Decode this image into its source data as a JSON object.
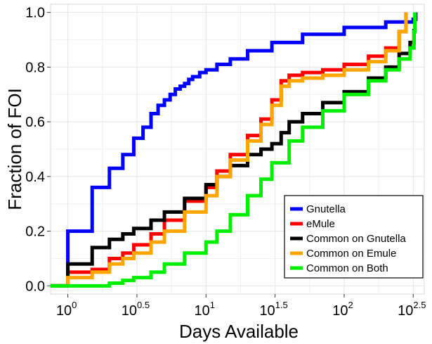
{
  "chart_data": {
    "type": "line",
    "title": "",
    "xlabel": "Days Available",
    "ylabel": "Fraction of FOI",
    "x_scale": "log10",
    "xlim": [
      0.75,
      380
    ],
    "ylim": [
      -0.03,
      1.03
    ],
    "grid": true,
    "legend_position": "bottom-right",
    "x_ticks": [
      {
        "value": 1,
        "base": "10",
        "exp": "0"
      },
      {
        "value": 3.1623,
        "base": "10",
        "exp": "0.5"
      },
      {
        "value": 10,
        "base": "10",
        "exp": "1"
      },
      {
        "value": 31.623,
        "base": "10",
        "exp": "1.5"
      },
      {
        "value": 100,
        "base": "10",
        "exp": "2"
      },
      {
        "value": 316.23,
        "base": "10",
        "exp": "2.5"
      }
    ],
    "y_ticks": [
      "0.0",
      "0.2",
      "0.4",
      "0.6",
      "0.8",
      "1.0"
    ],
    "y_tick_values": [
      0.0,
      0.2,
      0.4,
      0.6,
      0.8,
      1.0
    ],
    "series": [
      {
        "name": "Gnutella",
        "color": "#0000ff",
        "step": true,
        "x": [
          0.75,
          1,
          1,
          1.5,
          2,
          2.5,
          3,
          3.5,
          4,
          4.5,
          5,
          5.5,
          6,
          6.5,
          7,
          7.5,
          8,
          9,
          10,
          12,
          15,
          20,
          30,
          50,
          100,
          200,
          316,
          330
        ],
        "y": [
          0.0,
          0.0,
          0.2,
          0.36,
          0.43,
          0.48,
          0.54,
          0.58,
          0.63,
          0.66,
          0.68,
          0.7,
          0.72,
          0.73,
          0.74,
          0.755,
          0.765,
          0.78,
          0.79,
          0.81,
          0.83,
          0.86,
          0.89,
          0.92,
          0.945,
          0.965,
          0.975,
          1.0
        ]
      },
      {
        "name": "eMule",
        "color": "#ff0000",
        "step": true,
        "x": [
          0.75,
          1,
          1,
          1.5,
          2,
          2.5,
          3,
          4,
          5,
          7,
          10,
          12,
          15,
          20,
          25,
          30,
          35,
          40,
          50,
          70,
          100,
          150,
          200,
          250,
          280
        ],
        "y": [
          0.0,
          0.0,
          0.05,
          0.06,
          0.1,
          0.12,
          0.15,
          0.19,
          0.24,
          0.31,
          0.36,
          0.42,
          0.48,
          0.55,
          0.61,
          0.68,
          0.75,
          0.77,
          0.78,
          0.79,
          0.81,
          0.84,
          0.87,
          0.93,
          1.0
        ]
      },
      {
        "name": "Common on Gnutella",
        "color": "#000000",
        "step": true,
        "x": [
          0.75,
          1,
          1,
          1.5,
          2,
          2.5,
          3,
          4,
          5,
          7,
          10,
          12,
          15,
          20,
          25,
          30,
          35,
          40,
          50,
          70,
          100,
          150,
          200,
          250,
          300,
          320
        ],
        "y": [
          0.0,
          0.0,
          0.08,
          0.14,
          0.17,
          0.19,
          0.21,
          0.24,
          0.27,
          0.32,
          0.37,
          0.4,
          0.44,
          0.48,
          0.5,
          0.52,
          0.56,
          0.6,
          0.63,
          0.67,
          0.71,
          0.76,
          0.8,
          0.85,
          0.89,
          0.94
        ]
      },
      {
        "name": "Common on Emule",
        "color": "#ffa500",
        "step": true,
        "x": [
          0.75,
          1,
          1,
          1.5,
          2,
          2.5,
          3,
          4,
          5,
          7,
          10,
          12,
          15,
          20,
          25,
          30,
          35,
          40,
          50,
          70,
          100,
          150,
          200,
          250,
          280
        ],
        "y": [
          0.0,
          0.0,
          0.03,
          0.05,
          0.08,
          0.1,
          0.12,
          0.16,
          0.2,
          0.27,
          0.33,
          0.4,
          0.46,
          0.53,
          0.59,
          0.66,
          0.73,
          0.75,
          0.76,
          0.77,
          0.79,
          0.82,
          0.86,
          0.93,
          1.0
        ]
      },
      {
        "name": "Common on Both",
        "color": "#00ee00",
        "step": true,
        "x": [
          0.75,
          1,
          1.5,
          2,
          2.5,
          3,
          4,
          5,
          7,
          10,
          12,
          15,
          20,
          25,
          30,
          40,
          50,
          70,
          100,
          150,
          200,
          250,
          300,
          320,
          325
        ],
        "y": [
          0.0,
          0.0,
          0.0,
          0.01,
          0.02,
          0.03,
          0.05,
          0.08,
          0.12,
          0.16,
          0.2,
          0.26,
          0.33,
          0.39,
          0.45,
          0.53,
          0.58,
          0.64,
          0.7,
          0.75,
          0.79,
          0.83,
          0.87,
          0.93,
          1.0
        ]
      }
    ]
  }
}
